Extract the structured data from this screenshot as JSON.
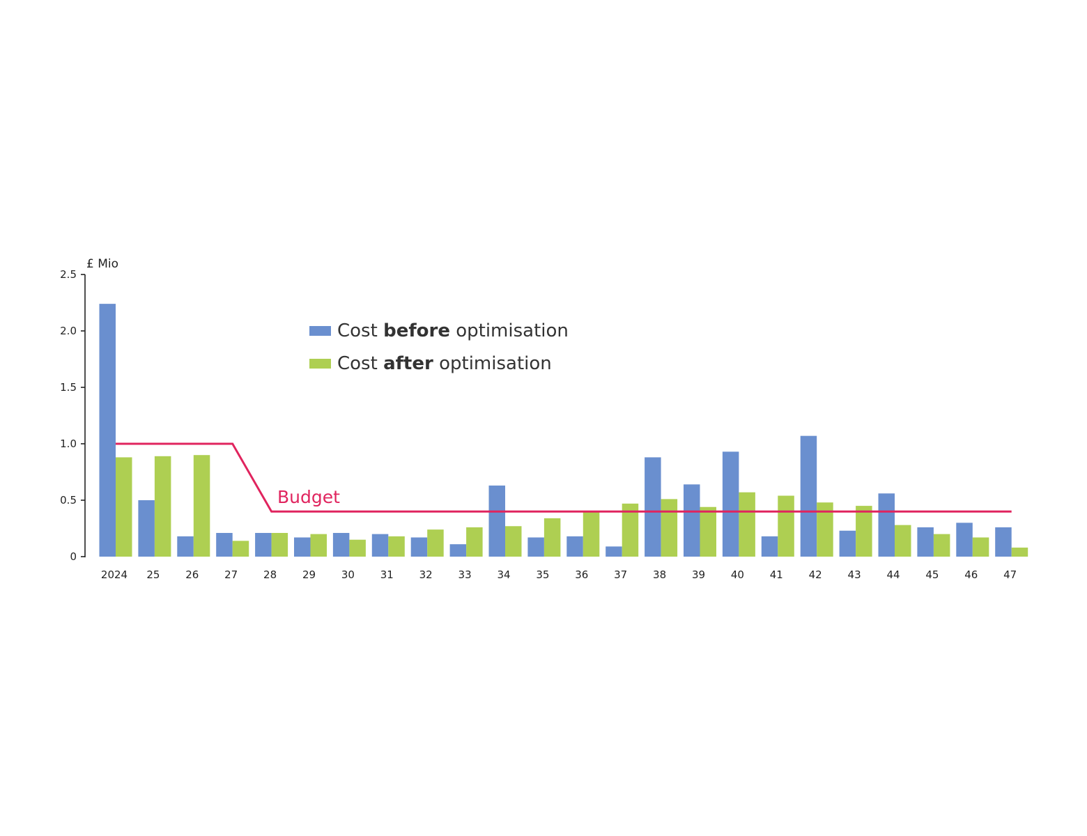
{
  "chart_data": {
    "type": "bar",
    "y_unit_label": "£ Mio",
    "ylim": [
      0,
      2.5
    ],
    "y_ticks": [
      "0",
      "0.5",
      "1.0",
      "1.5",
      "2.0",
      "2.5"
    ],
    "y_tick_values": [
      0,
      0.5,
      1.0,
      1.5,
      2.0,
      2.5
    ],
    "categories": [
      "2024",
      "25",
      "26",
      "27",
      "28",
      "29",
      "30",
      "31",
      "32",
      "33",
      "34",
      "35",
      "36",
      "37",
      "38",
      "39",
      "40",
      "41",
      "42",
      "43",
      "44",
      "45",
      "46",
      "47"
    ],
    "series": [
      {
        "key": "before",
        "color": "#6a8fcf",
        "values": [
          2.24,
          0.5,
          0.18,
          0.21,
          0.21,
          0.17,
          0.21,
          0.2,
          0.17,
          0.11,
          0.63,
          0.17,
          0.18,
          0.09,
          0.88,
          0.64,
          0.93,
          0.18,
          1.07,
          0.23,
          0.56,
          0.26,
          0.3,
          0.26
        ]
      },
      {
        "key": "after",
        "color": "#aecf52",
        "values": [
          0.88,
          0.89,
          0.9,
          0.14,
          0.21,
          0.2,
          0.15,
          0.18,
          0.24,
          0.26,
          0.27,
          0.34,
          0.4,
          0.47,
          0.51,
          0.44,
          0.57,
          0.54,
          0.48,
          0.45,
          0.28,
          0.2,
          0.17,
          0.08
        ]
      }
    ],
    "legend": [
      {
        "prefix": "Cost ",
        "bold": "before",
        "suffix": " optimisation",
        "color": "#6a8fcf"
      },
      {
        "prefix": "Cost ",
        "bold": "after",
        "suffix": " optimisation",
        "color": "#aecf52"
      }
    ],
    "legend_position": "top-center",
    "budget": {
      "label": "Budget",
      "color": "#e0245e",
      "points": [
        {
          "x": "2024",
          "y": 1.0
        },
        {
          "x": "27",
          "y": 1.0
        },
        {
          "x": "28",
          "y": 0.4
        },
        {
          "x": "47",
          "y": 0.4
        }
      ]
    },
    "grid": false
  }
}
